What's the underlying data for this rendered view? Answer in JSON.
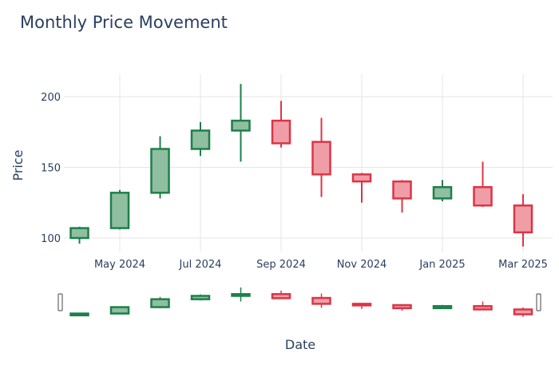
{
  "chart_data": {
    "type": "candlestick",
    "title": "Monthly Price Movement",
    "xlabel": "Date",
    "ylabel": "Price",
    "ylim": [
      90,
      215
    ],
    "yticks": [
      100,
      150,
      200
    ],
    "xticks": [
      {
        "date": "2024-05",
        "label": "May 2024"
      },
      {
        "date": "2024-07",
        "label": "Jul 2024"
      },
      {
        "date": "2024-09",
        "label": "Sep 2024"
      },
      {
        "date": "2024-11",
        "label": "Nov 2024"
      },
      {
        "date": "2025-01",
        "label": "Jan 2025"
      },
      {
        "date": "2025-03",
        "label": "Mar 2025"
      }
    ],
    "grid": true,
    "rangeslider": true,
    "colors": {
      "increasing": "#1e7f4a",
      "increasing_fill": "#8fbfa0",
      "decreasing": "#dc3545",
      "decreasing_fill": "#ef9ea8"
    },
    "candles": [
      {
        "date": "2024-04",
        "open": 100,
        "high": 108,
        "low": 96,
        "close": 107
      },
      {
        "date": "2024-05",
        "open": 107,
        "high": 134,
        "low": 106,
        "close": 132
      },
      {
        "date": "2024-06",
        "open": 132,
        "high": 172,
        "low": 128,
        "close": 163
      },
      {
        "date": "2024-07",
        "open": 163,
        "high": 182,
        "low": 158,
        "close": 176
      },
      {
        "date": "2024-08",
        "open": 176,
        "high": 209,
        "low": 154,
        "close": 183
      },
      {
        "date": "2024-09",
        "open": 183,
        "high": 197,
        "low": 164,
        "close": 167
      },
      {
        "date": "2024-10",
        "open": 168,
        "high": 185,
        "low": 129,
        "close": 145
      },
      {
        "date": "2024-11",
        "open": 145,
        "high": 146,
        "low": 125,
        "close": 140
      },
      {
        "date": "2024-12",
        "open": 140,
        "high": 141,
        "low": 118,
        "close": 128
      },
      {
        "date": "2025-01",
        "open": 128,
        "high": 141,
        "low": 126,
        "close": 136
      },
      {
        "date": "2025-02",
        "open": 136,
        "high": 154,
        "low": 122,
        "close": 123
      },
      {
        "date": "2025-03",
        "open": 123,
        "high": 131,
        "low": 94,
        "close": 104
      }
    ]
  }
}
